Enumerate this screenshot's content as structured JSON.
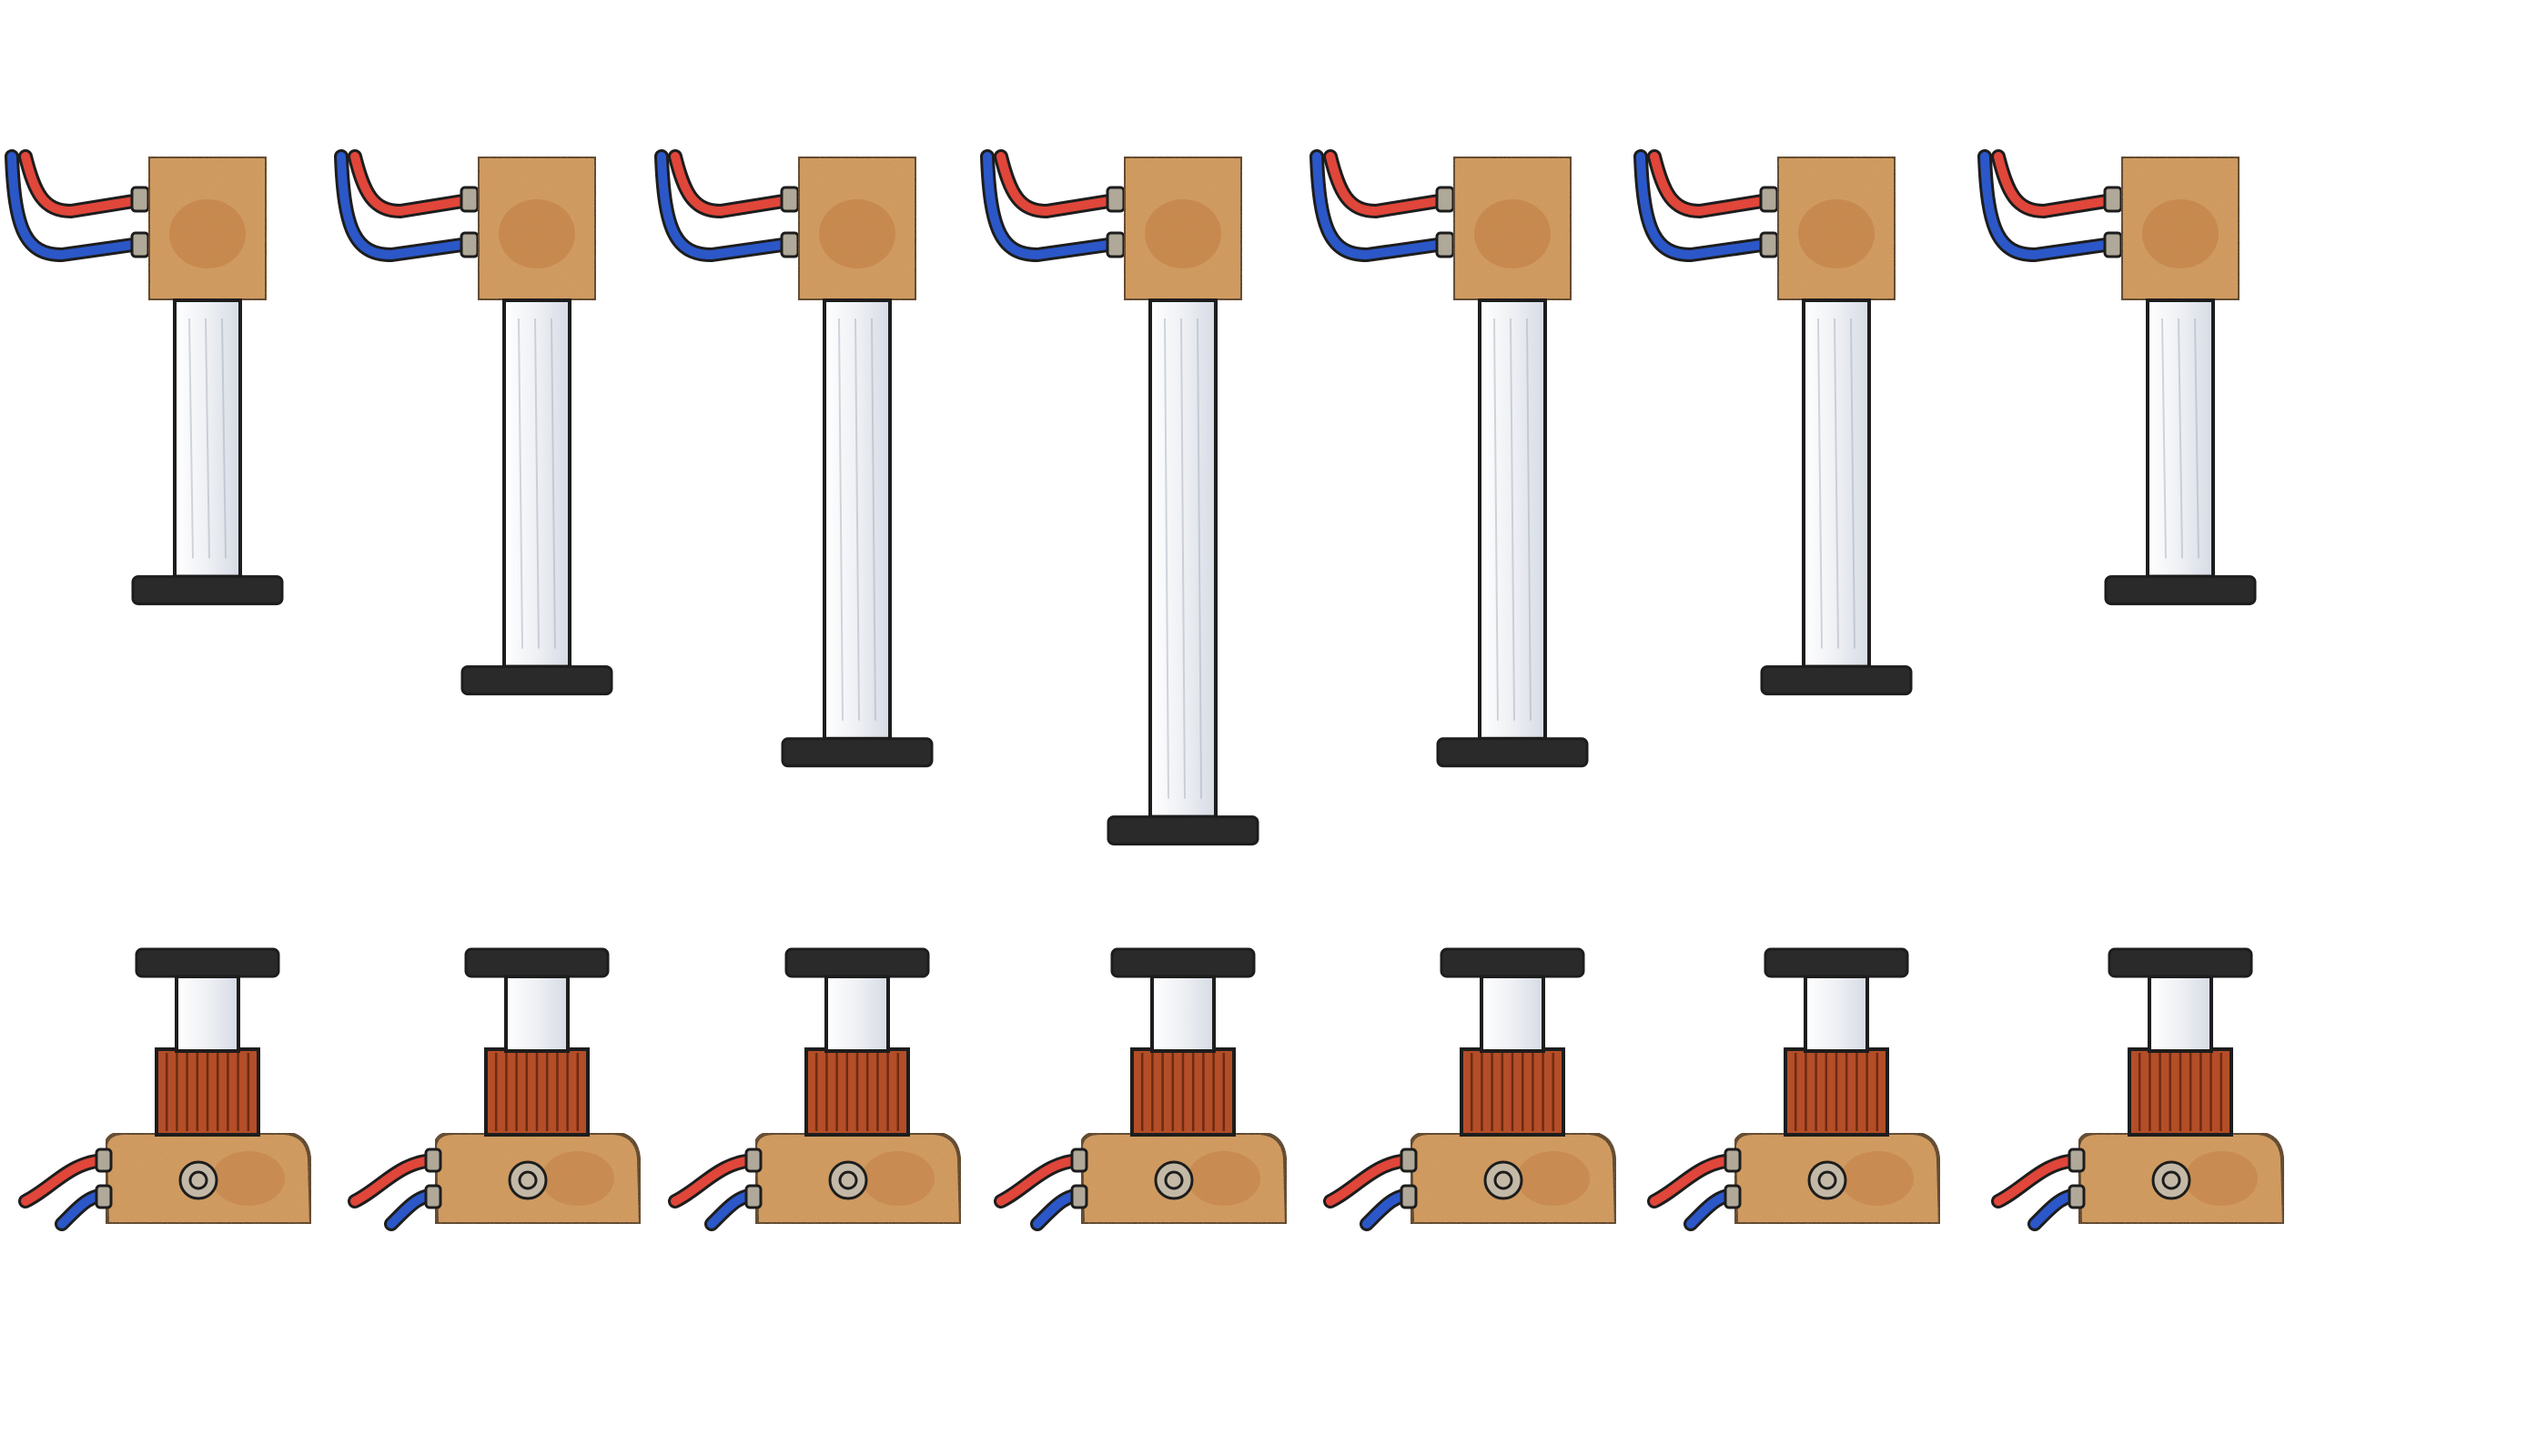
{
  "colors": {
    "background": "#ffffff",
    "wood": "#d9a064",
    "wood_spot": "#b86a32",
    "rod": "#e8ebef",
    "rod_streak": "#9fa8b8",
    "disc": "#2a2a2a",
    "coil": "#b34e28",
    "coil_line": "#6e2a12",
    "wire_red": "#e0463a",
    "wire_blue": "#2b57c8",
    "outline": "#1d1d1d",
    "nut": "#b0a898"
  },
  "icons": {
    "top_unit": "wooden-block-with-hanging-rod-icon",
    "bottom_unit": "wooden-base-with-coil-and-plunger-icon",
    "terminal": "screw-terminal-icon"
  },
  "sequence": {
    "stages": [
      {
        "rod_extension": 0.46,
        "contact": false
      },
      {
        "rod_extension": 0.61,
        "contact": false
      },
      {
        "rod_extension": 0.73,
        "contact": false
      },
      {
        "rod_extension": 0.86,
        "contact": true
      },
      {
        "rod_extension": 0.73,
        "contact": false
      },
      {
        "rod_extension": 0.61,
        "contact": false
      },
      {
        "rod_extension": 0.46,
        "contact": false
      }
    ]
  }
}
